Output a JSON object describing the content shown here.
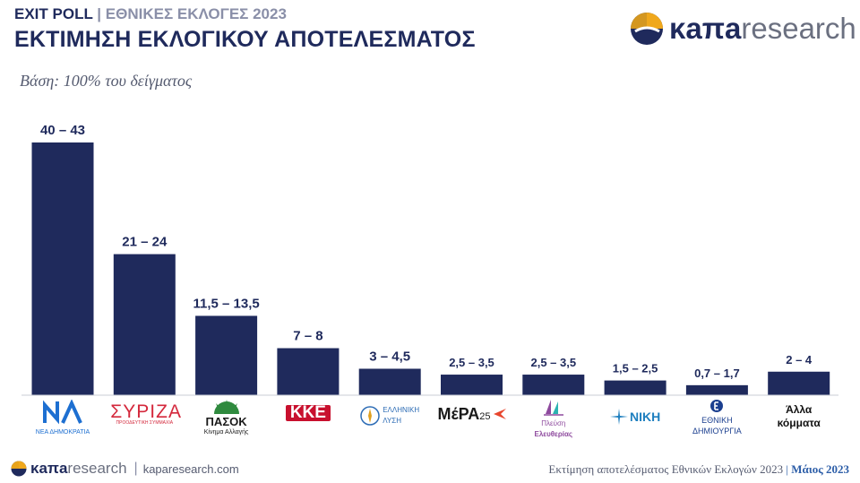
{
  "header": {
    "exit_poll": "EXIT POLL",
    "separator": "|",
    "elections": "ΕΘΝΙΚΕΣ ΕΚΛΟΓΕΣ 2023",
    "title": "ΕΚΤΙΜΗΣΗ ΕΚΛΟΓΙΚΟΥ ΑΠΟΤΕΛΕΣΜΑΤΟΣ",
    "base": "Βάση: 100% του δείγματος"
  },
  "brand": {
    "name_bold": "κaπa",
    "name_light": "research",
    "site": "kaparesearch.com"
  },
  "footer": {
    "note": "Εκτίμηση αποτελέσματος Εθνικών Εκλογών 2023",
    "sep": "|",
    "date": "Μάιος 2023"
  },
  "parties": {
    "nd": "ΝΕΑ ΔΗΜΟΚΡΑΤΙΑ",
    "syriza": "ΣΥΡΙΖΑ",
    "syriza_sub": "ΠΡΟΟΔΕΥΤΙΚΗ ΣΥΜΜΑΧΙΑ",
    "pasok": "ΠΑΣΟΚ",
    "pasok_sub": "Κίνημα Αλλαγής",
    "kke": "ΚΚΕ",
    "elliniki": "ΕΛΛΗΝΙΚΗ",
    "elliniki_sub": "ΛΥΣΗ",
    "mera": "ΜέΡΑ",
    "mera_num": "25",
    "plefsi": "Πλεύση",
    "plefsi_sub": "Ελευθερίας",
    "niki": "ΝΙΚΗ",
    "ethniki": "ΕΘΝΙΚΗ",
    "ethniki_sub": "ΔΗΜΙΟΥΡΓΙΑ",
    "alla": "Άλλα κόμματα"
  },
  "colors": {
    "bar": "#1f2a5c",
    "nd": "#1d6fd1",
    "syriza": "#d4283c",
    "pasok": "#2f8a3e",
    "kke": "#c8102e",
    "plefsi": "#8e4a9e",
    "niki": "#1e7fbf",
    "ethniki": "#1b3f8f"
  },
  "chart_data": {
    "type": "bar",
    "categories": [
      "ΝΔ",
      "ΣΥΡΙΖΑ",
      "ΠΑΣΟΚ",
      "ΚΚΕ",
      "Ελληνική Λύση",
      "ΜέΡΑ25",
      "Πλεύση Ελευθερίας",
      "ΝΙΚΗ",
      "Εθνική Δημιουργία",
      "Άλλα κόμματα"
    ],
    "ranges": [
      [
        40,
        43
      ],
      [
        21,
        24
      ],
      [
        11.5,
        13.5
      ],
      [
        7,
        8
      ],
      [
        3,
        4.5
      ],
      [
        2.5,
        3.5
      ],
      [
        2.5,
        3.5
      ],
      [
        1.5,
        2.5
      ],
      [
        0.7,
        1.7
      ],
      [
        2,
        4
      ]
    ],
    "value_labels": [
      "40 – 43",
      "21 – 24",
      "11,5 – 13,5",
      "7 – 8",
      "3 – 4,5",
      "2,5 – 3,5",
      "2,5 – 3,5",
      "1,5 – 2,5",
      "0,7 – 1,7",
      "2 – 4"
    ],
    "ylim": [
      0,
      43
    ],
    "grid": false,
    "legend": "none"
  }
}
